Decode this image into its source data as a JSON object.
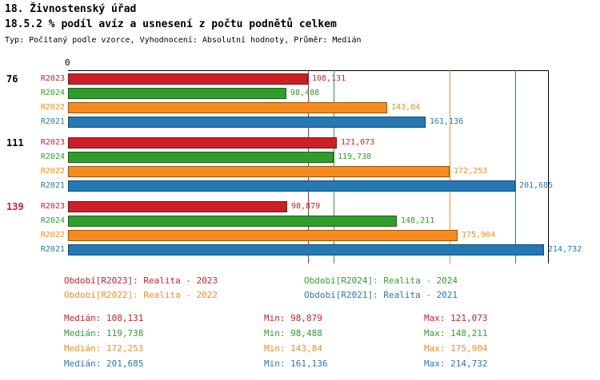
{
  "header": {
    "title": "18. Živnostenský úřad",
    "subtitle": "18.5.2 % podíl avíz a usnesení z počtu podnětů celkem",
    "meta": "Typ: Počítaný podle vzorce, Vyhodnocení: Absolutní hodnoty, Průměr: Medián"
  },
  "chart_data": {
    "type": "bar",
    "orientation": "horizontal",
    "title": "18.5.2 % podíl avíz a usnesení z počtu podnětů celkem",
    "axis": {
      "origin_label": "0",
      "max": 216.5,
      "grid": "median-lines-only",
      "legend_position": "bottom"
    },
    "series_colors": {
      "R2023": "#cc2027",
      "R2024": "#2f9e2c",
      "R2022": "#f68b1f",
      "R2021": "#2479b5"
    },
    "series_border_colors": {
      "R2023": "#7c1212",
      "R2024": "#1d5e1a",
      "R2022": "#9a540a",
      "R2021": "#124a70"
    },
    "groups": [
      {
        "label": "76",
        "label_color": "#000000",
        "bars": [
          {
            "series": "R2023",
            "value": 108.131,
            "value_label": "108,131"
          },
          {
            "series": "R2024",
            "value": 98.488,
            "value_label": "98,488"
          },
          {
            "series": "R2022",
            "value": 143.84,
            "value_label": "143,84"
          },
          {
            "series": "R2021",
            "value": 161.136,
            "value_label": "161,136"
          }
        ]
      },
      {
        "label": "111",
        "label_color": "#000000",
        "bars": [
          {
            "series": "R2023",
            "value": 121.073,
            "value_label": "121,073"
          },
          {
            "series": "R2024",
            "value": 119.738,
            "value_label": "119,738"
          },
          {
            "series": "R2022",
            "value": 172.253,
            "value_label": "172,253"
          },
          {
            "series": "R2021",
            "value": 201.685,
            "value_label": "201,685"
          }
        ]
      },
      {
        "label": "139",
        "label_color": "#cc2027",
        "bars": [
          {
            "series": "R2023",
            "value": 98.879,
            "value_label": "98,879"
          },
          {
            "series": "R2024",
            "value": 148.211,
            "value_label": "148,211"
          },
          {
            "series": "R2022",
            "value": 175.904,
            "value_label": "175,904"
          },
          {
            "series": "R2021",
            "value": 214.732,
            "value_label": "214,732"
          }
        ]
      }
    ],
    "median_lines": [
      {
        "series": "R2023",
        "value": 108.131
      },
      {
        "series": "R2024",
        "value": 119.738
      },
      {
        "series": "R2022",
        "value": 172.253
      },
      {
        "series": "R2021",
        "value": 201.685
      }
    ],
    "legend": [
      {
        "series": "R2023",
        "label": "Období[R2023]: Realita - 2023",
        "color": "#cc2027",
        "row": 0,
        "col": 0
      },
      {
        "series": "R2024",
        "label": "Období[R2024]: Realita - 2024",
        "color": "#2f9e2c",
        "row": 0,
        "col": 1
      },
      {
        "series": "R2022",
        "label": "Období[R2022]: Realita - 2022",
        "color": "#f68b1f",
        "row": 1,
        "col": 0
      },
      {
        "series": "R2021",
        "label": "Období[R2021]: Realita - 2021",
        "color": "#2479b5",
        "row": 1,
        "col": 1
      }
    ],
    "stats": [
      {
        "series": "R2023",
        "color": "#cc2027",
        "median": "Medián: 108,131",
        "min": "Min: 98,879",
        "max": "Max: 121,073"
      },
      {
        "series": "R2024",
        "color": "#2f9e2c",
        "median": "Medián: 119,738",
        "min": "Min: 98,488",
        "max": "Max: 148,211"
      },
      {
        "series": "R2022",
        "color": "#f68b1f",
        "median": "Medián: 172,253",
        "min": "Min: 143,84",
        "max": "Max: 175,904"
      },
      {
        "series": "R2021",
        "color": "#2479b5",
        "median": "Medián: 201,685",
        "min": "Min: 161,136",
        "max": "Max: 214,732"
      }
    ]
  }
}
